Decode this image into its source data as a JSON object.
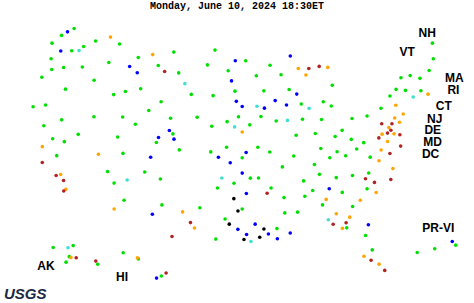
{
  "chart_data": {
    "type": "map",
    "title": "Monday, June 10, 2024 18:30ET",
    "caption": "USGS",
    "annotations": [
      {
        "text": "NH",
        "lon": -68.8,
        "lat": 47.6
      },
      {
        "text": "VT",
        "lon": -72.3,
        "lat": 46.3
      },
      {
        "text": "MA",
        "lon": -67.0,
        "lat": 42.6
      },
      {
        "text": "RI",
        "lon": -67.6,
        "lat": 41.5
      },
      {
        "text": "CT",
        "lon": -69.4,
        "lat": 40.3
      },
      {
        "text": "NJ",
        "lon": -71.0,
        "lat": 39.3
      },
      {
        "text": "DE",
        "lon": -71.6,
        "lat": 38.3
      },
      {
        "text": "MD",
        "lon": -72.0,
        "lat": 37.2
      },
      {
        "text": "DC",
        "lon": -72.6,
        "lat": 36.1
      },
      {
        "text": "AK",
        "lon": -163.0,
        "lat": 58.5
      },
      {
        "text": "HI",
        "lon": -159.6,
        "lat": 19.6
      },
      {
        "text": "PR-VI",
        "lon": -66.4,
        "lat": 18.75
      }
    ],
    "series": [
      {
        "color": "#00e000",
        "points": [
          [
            -122.5,
            47.5
          ],
          [
            -121,
            48.5
          ],
          [
            -119,
            47
          ],
          [
            -117.5,
            47.8
          ],
          [
            -123.5,
            46.5
          ],
          [
            -120.5,
            46.3
          ],
          [
            -123,
            45
          ],
          [
            -122.5,
            44
          ],
          [
            -121,
            44.5
          ],
          [
            -118.5,
            45
          ],
          [
            -123.5,
            43
          ],
          [
            -120,
            42.5
          ],
          [
            -116.5,
            44
          ],
          [
            -115,
            46
          ],
          [
            -113.5,
            43
          ],
          [
            -112,
            43.5
          ],
          [
            -114,
            48
          ],
          [
            -111,
            47
          ],
          [
            -108,
            46.5
          ],
          [
            -106,
            48
          ],
          [
            -105,
            46
          ],
          [
            -110,
            44
          ],
          [
            -107,
            43
          ],
          [
            -105.5,
            41.5
          ],
          [
            -108.5,
            42
          ],
          [
            -122,
            40.5
          ],
          [
            -121.5,
            38.5
          ],
          [
            -120,
            37.5
          ],
          [
            -119,
            36
          ],
          [
            -123.5,
            40
          ],
          [
            -118.5,
            37.5
          ],
          [
            -115.5,
            40.5
          ],
          [
            -119.5,
            39.5
          ],
          [
            -117,
            38.5
          ],
          [
            -111.8,
            41
          ],
          [
            -112,
            39
          ],
          [
            -110,
            40.5
          ],
          [
            -111,
            37.5
          ],
          [
            -111.5,
            34.5
          ],
          [
            -110,
            33
          ],
          [
            -112.5,
            35.5
          ],
          [
            -106,
            35.5
          ],
          [
            -105.5,
            33
          ],
          [
            -108,
            36
          ],
          [
            -105,
            40
          ],
          [
            -107,
            39
          ],
          [
            -104,
            38.5
          ],
          [
            -101,
            47
          ],
          [
            -98,
            46.5
          ],
          [
            -100,
            48.5
          ],
          [
            -100,
            44
          ],
          [
            -97,
            44.5
          ],
          [
            -103,
            44
          ],
          [
            -100,
            41
          ],
          [
            -98,
            41.5
          ],
          [
            -96.5,
            42
          ],
          [
            -102,
            41.8
          ],
          [
            -98,
            39
          ],
          [
            -96,
            38
          ],
          [
            -100,
            38.5
          ],
          [
            -97,
            35.5
          ],
          [
            -95,
            36
          ],
          [
            -99,
            35
          ],
          [
            -98,
            32
          ],
          [
            -101,
            33
          ],
          [
            -96,
            33
          ],
          [
            -99,
            30
          ],
          [
            -94,
            46
          ],
          [
            -93,
            44.5
          ],
          [
            -95.5,
            47.5
          ],
          [
            -92,
            47
          ],
          [
            -93.5,
            42
          ],
          [
            -91.5,
            41.5
          ],
          [
            -95,
            41.2
          ],
          [
            -92.5,
            38.5
          ],
          [
            -91,
            37
          ],
          [
            -94,
            39
          ],
          [
            -92.5,
            35
          ],
          [
            -94,
            36
          ],
          [
            -91,
            34
          ],
          [
            -92,
            31
          ],
          [
            -91,
            32.5
          ],
          [
            -89.5,
            44.5
          ],
          [
            -90.5,
            46
          ],
          [
            -88,
            43
          ],
          [
            -89,
            40
          ],
          [
            -88,
            41.5
          ],
          [
            -89.5,
            38
          ],
          [
            -86.5,
            40
          ],
          [
            -86,
            38.5
          ],
          [
            -85.5,
            41.3
          ],
          [
            -83,
            40
          ],
          [
            -81.5,
            41
          ],
          [
            -84,
            39.5
          ],
          [
            -82,
            39
          ],
          [
            -85,
            43
          ],
          [
            -84,
            42.5
          ],
          [
            -83.5,
            44.5
          ],
          [
            -85,
            37.5
          ],
          [
            -84,
            38
          ],
          [
            -87,
            37
          ],
          [
            -83,
            37.5
          ],
          [
            -86.5,
            36
          ],
          [
            -84.5,
            35.5
          ],
          [
            -88.5,
            35.5
          ],
          [
            -89.5,
            32.5
          ],
          [
            -88.5,
            34
          ],
          [
            -86.5,
            33
          ],
          [
            -87.5,
            34.5
          ],
          [
            -84,
            34
          ],
          [
            -83,
            32.5
          ],
          [
            -82,
            29.5
          ],
          [
            -84,
            30.5
          ],
          [
            -81.5,
            28
          ],
          [
            -81,
            34
          ],
          [
            -80.5,
            35.5
          ],
          [
            -82.5,
            35.5
          ],
          [
            -80.5,
            38.5
          ],
          [
            -81.5,
            38
          ],
          [
            -80,
            37
          ],
          [
            -79.5,
            41
          ],
          [
            -77.5,
            41.5
          ],
          [
            -75,
            43
          ],
          [
            -74,
            44
          ],
          [
            -76,
            42.5
          ],
          [
            -73.8,
            42.7
          ],
          [
            -72.7,
            44
          ],
          [
            -71.5,
            43.5
          ],
          [
            -69,
            45
          ],
          [
            -70,
            44
          ],
          [
            -68.5,
            46.5
          ],
          [
            -71.8,
            42.3
          ],
          [
            -150,
            61.5
          ],
          [
            -147,
            64.5
          ],
          [
            -135,
            58
          ],
          [
            -152,
            60
          ],
          [
            -160,
            64
          ],
          [
            -155.5,
            19.7
          ],
          [
            -157.9,
            21.4
          ],
          [
            -159.5,
            22
          ],
          [
            -66.5,
            18.2
          ],
          [
            -65.9,
            18.3
          ],
          [
            -67,
            18.1
          ]
        ]
      },
      {
        "color": "#40e0d0",
        "points": [
          [
            -97,
            41
          ],
          [
            -98.5,
            36
          ],
          [
            -90,
            41.5
          ],
          [
            -94,
            43
          ],
          [
            -104,
            45
          ],
          [
            -119.5,
            46.5
          ],
          [
            -110,
            35
          ],
          [
            -95,
            29.8
          ],
          [
            -87,
            42.5
          ],
          [
            -73,
            41.9
          ],
          [
            -86,
            31.5
          ],
          [
            -150.5,
            64
          ]
        ]
      },
      {
        "color": "#0000ff",
        "points": [
          [
            -104.8,
            39.5
          ],
          [
            -105.5,
            40.3
          ],
          [
            -106.8,
            39.5
          ],
          [
            -107.5,
            37.5
          ],
          [
            -97,
            47.5
          ],
          [
            -97.5,
            45.5
          ],
          [
            -96.8,
            43.5
          ],
          [
            -96,
            43
          ],
          [
            -95.5,
            38.5
          ],
          [
            -97.5,
            37.5
          ],
          [
            -96,
            36.5
          ],
          [
            -95.5,
            34.5
          ],
          [
            -96.5,
            31
          ],
          [
            -95.5,
            30.5
          ],
          [
            -94.5,
            31.5
          ],
          [
            -93,
            30.5
          ],
          [
            -92,
            30
          ],
          [
            -90.5,
            30.5
          ],
          [
            -91.5,
            43.5
          ],
          [
            -90,
            43
          ],
          [
            -88.5,
            44
          ],
          [
            -93,
            42.8
          ],
          [
            -121.8,
            48
          ],
          [
            -122,
            46
          ],
          [
            -110.8,
            45.5
          ],
          [
            -112,
            46
          ],
          [
            -85.5,
            34.5
          ],
          [
            -81.5,
            30.5
          ],
          [
            -89,
            47.8
          ],
          [
            -106.5,
            32
          ],
          [
            -99,
            38
          ],
          [
            -156,
            19.5
          ],
          [
            -66,
            18.4
          ]
        ]
      },
      {
        "color": "#000000",
        "points": [
          [
            -97.5,
            31.5
          ],
          [
            -95.8,
            30
          ],
          [
            -94,
            30.2
          ],
          [
            -96.5,
            32.8
          ],
          [
            -93.5,
            31
          ],
          [
            -97,
            34
          ]
        ]
      },
      {
        "color": "#ffa500",
        "points": [
          [
            -77,
            39.5
          ],
          [
            -76.5,
            38.8
          ],
          [
            -77.5,
            38.2
          ],
          [
            -78,
            39
          ],
          [
            -76,
            40.3
          ],
          [
            -75.5,
            39.8
          ],
          [
            -74.8,
            40.5
          ],
          [
            -78.5,
            37.5
          ],
          [
            -79,
            36.5
          ],
          [
            -77.5,
            35.5
          ],
          [
            -80,
            33.5
          ],
          [
            -82,
            33
          ],
          [
            -83.5,
            31.5
          ],
          [
            -85,
            32
          ],
          [
            -86,
            33.5
          ],
          [
            -84.5,
            30.5
          ],
          [
            -81,
            26.5
          ],
          [
            -82.5,
            27.5
          ],
          [
            -88,
            46.5
          ],
          [
            -87,
            45.8
          ],
          [
            -118,
            34.3
          ],
          [
            -117,
            33
          ],
          [
            -121,
            36.5
          ],
          [
            -101.5,
            31
          ],
          [
            -103,
            32.5
          ],
          [
            -111,
            32
          ],
          [
            -114,
            37
          ],
          [
            -109,
            47.5
          ],
          [
            -115.5,
            48.5
          ],
          [
            -83.8,
            46.3
          ],
          [
            -75.5,
            41.5
          ],
          [
            -71,
            41.8
          ],
          [
            -149,
            61.2
          ],
          [
            -158,
            21.5
          ],
          [
            -96,
            40.5
          ]
        ]
      },
      {
        "color": "#b22222",
        "points": [
          [
            -76.8,
            39.2
          ],
          [
            -77.3,
            39
          ],
          [
            -76.5,
            39.8
          ],
          [
            -77.8,
            40
          ],
          [
            -78.5,
            38.7
          ],
          [
            -75.8,
            38.6
          ],
          [
            -76,
            37.5
          ],
          [
            -77.5,
            37
          ],
          [
            -78,
            34.5
          ],
          [
            -81,
            35
          ],
          [
            -80,
            34.5
          ],
          [
            -84,
            31
          ],
          [
            -85.5,
            31
          ],
          [
            -81.8,
            27
          ],
          [
            -80.5,
            25.8
          ],
          [
            -117.2,
            32.8
          ],
          [
            -118.5,
            34.1
          ],
          [
            -117.5,
            33.8
          ],
          [
            -120.5,
            35
          ],
          [
            -102,
            31.5
          ],
          [
            -104,
            30
          ],
          [
            -86.5,
            46.4
          ],
          [
            -85,
            46.5
          ],
          [
            -107,
            46
          ],
          [
            -135.5,
            59
          ],
          [
            -146,
            61
          ],
          [
            -155,
            20
          ],
          [
            -93,
            34.5
          ]
        ]
      }
    ]
  }
}
